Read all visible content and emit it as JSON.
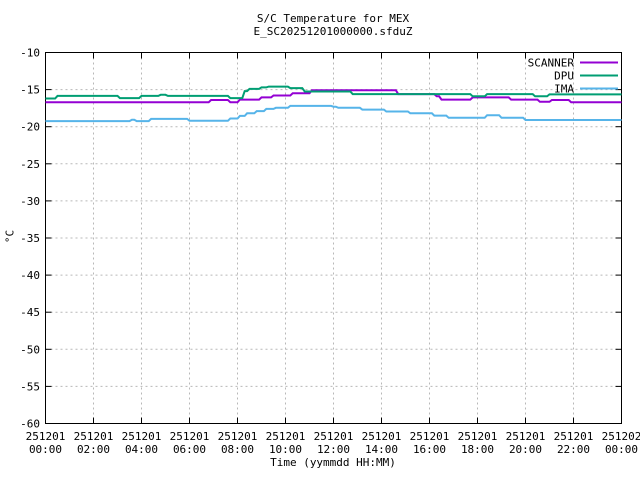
{
  "colors": {
    "background": "#ffffff",
    "axis": "#000000",
    "grid": "#b8b8b8",
    "scanner": "#9400d3",
    "dpu": "#009e73",
    "ima": "#56b4e9"
  },
  "chart_data": {
    "type": "line",
    "title": "S/C Temperature for MEX",
    "subtitle": "E_SC20251201000000.sfduZ",
    "xlabel": "Time (yymmdd HH:MM)",
    "ylabel": "°C",
    "ylim": [
      -60,
      -10
    ],
    "yticks": [
      -10,
      -15,
      -20,
      -25,
      -30,
      -35,
      -40,
      -45,
      -50,
      -55,
      -60
    ],
    "x_hours_range": [
      0,
      24
    ],
    "xticks": [
      {
        "hour": 0,
        "date": "251201",
        "time": "00:00"
      },
      {
        "hour": 2,
        "date": "251201",
        "time": "02:00"
      },
      {
        "hour": 4,
        "date": "251201",
        "time": "04:00"
      },
      {
        "hour": 6,
        "date": "251201",
        "time": "06:00"
      },
      {
        "hour": 8,
        "date": "251201",
        "time": "08:00"
      },
      {
        "hour": 10,
        "date": "251201",
        "time": "10:00"
      },
      {
        "hour": 12,
        "date": "251201",
        "time": "12:00"
      },
      {
        "hour": 14,
        "date": "251201",
        "time": "14:00"
      },
      {
        "hour": 16,
        "date": "251201",
        "time": "16:00"
      },
      {
        "hour": 18,
        "date": "251201",
        "time": "18:00"
      },
      {
        "hour": 20,
        "date": "251201",
        "time": "20:00"
      },
      {
        "hour": 22,
        "date": "251201",
        "time": "22:00"
      },
      {
        "hour": 24,
        "date": "251202",
        "time": "00:00"
      }
    ],
    "grid": true,
    "legend_position": "top-right-inside",
    "series": [
      {
        "name": "SCANNER",
        "color": "#9400d3",
        "points": [
          [
            0,
            -16.7
          ],
          [
            6.8,
            -16.7
          ],
          [
            6.9,
            -16.4
          ],
          [
            7.6,
            -16.4
          ],
          [
            7.7,
            -16.7
          ],
          [
            8.0,
            -16.7
          ],
          [
            8.1,
            -16.35
          ],
          [
            8.9,
            -16.35
          ],
          [
            9.0,
            -16.05
          ],
          [
            9.4,
            -16.05
          ],
          [
            9.5,
            -15.8
          ],
          [
            10.2,
            -15.8
          ],
          [
            10.3,
            -15.5
          ],
          [
            11.0,
            -15.5
          ],
          [
            11.1,
            -15.1
          ],
          [
            14.6,
            -15.1
          ],
          [
            14.7,
            -15.6
          ],
          [
            16.2,
            -15.6
          ],
          [
            16.3,
            -15.9
          ],
          [
            16.4,
            -15.9
          ],
          [
            16.5,
            -16.35
          ],
          [
            17.7,
            -16.35
          ],
          [
            17.8,
            -16.05
          ],
          [
            19.3,
            -16.05
          ],
          [
            19.4,
            -16.35
          ],
          [
            20.5,
            -16.35
          ],
          [
            20.6,
            -16.65
          ],
          [
            21.0,
            -16.65
          ],
          [
            21.1,
            -16.4
          ],
          [
            21.8,
            -16.4
          ],
          [
            21.9,
            -16.7
          ],
          [
            24,
            -16.7
          ]
        ]
      },
      {
        "name": "DPU",
        "color": "#009e73",
        "points": [
          [
            0,
            -16.2
          ],
          [
            0.4,
            -16.2
          ],
          [
            0.5,
            -15.85
          ],
          [
            3.0,
            -15.85
          ],
          [
            3.1,
            -16.15
          ],
          [
            3.9,
            -16.15
          ],
          [
            4.0,
            -15.85
          ],
          [
            4.7,
            -15.85
          ],
          [
            4.8,
            -15.7
          ],
          [
            5.0,
            -15.7
          ],
          [
            5.1,
            -15.85
          ],
          [
            7.6,
            -15.85
          ],
          [
            7.7,
            -16.15
          ],
          [
            8.2,
            -16.15
          ],
          [
            8.3,
            -15.2
          ],
          [
            8.4,
            -15.2
          ],
          [
            8.5,
            -14.9
          ],
          [
            8.9,
            -14.9
          ],
          [
            9.0,
            -14.7
          ],
          [
            9.2,
            -14.7
          ],
          [
            9.3,
            -14.6
          ],
          [
            10.1,
            -14.6
          ],
          [
            10.2,
            -14.8
          ],
          [
            10.7,
            -14.8
          ],
          [
            10.8,
            -15.25
          ],
          [
            12.7,
            -15.25
          ],
          [
            12.8,
            -15.6
          ],
          [
            17.7,
            -15.6
          ],
          [
            17.8,
            -15.9
          ],
          [
            18.3,
            -15.9
          ],
          [
            18.4,
            -15.6
          ],
          [
            20.3,
            -15.6
          ],
          [
            20.4,
            -15.9
          ],
          [
            20.9,
            -15.9
          ],
          [
            21.0,
            -15.65
          ],
          [
            24,
            -15.65
          ]
        ]
      },
      {
        "name": "IMA",
        "color": "#56b4e9",
        "points": [
          [
            0,
            -19.25
          ],
          [
            3.5,
            -19.25
          ],
          [
            3.6,
            -19.05
          ],
          [
            3.7,
            -19.05
          ],
          [
            3.8,
            -19.25
          ],
          [
            4.3,
            -19.25
          ],
          [
            4.4,
            -18.95
          ],
          [
            5.9,
            -18.95
          ],
          [
            6.0,
            -19.2
          ],
          [
            7.6,
            -19.2
          ],
          [
            7.7,
            -18.9
          ],
          [
            8.0,
            -18.9
          ],
          [
            8.1,
            -18.55
          ],
          [
            8.3,
            -18.55
          ],
          [
            8.4,
            -18.2
          ],
          [
            8.7,
            -18.2
          ],
          [
            8.8,
            -17.9
          ],
          [
            9.1,
            -17.9
          ],
          [
            9.2,
            -17.6
          ],
          [
            9.5,
            -17.6
          ],
          [
            9.6,
            -17.45
          ],
          [
            10.1,
            -17.45
          ],
          [
            10.2,
            -17.2
          ],
          [
            11.9,
            -17.2
          ],
          [
            12.0,
            -17.3
          ],
          [
            12.1,
            -17.3
          ],
          [
            12.2,
            -17.45
          ],
          [
            13.1,
            -17.45
          ],
          [
            13.2,
            -17.7
          ],
          [
            14.1,
            -17.7
          ],
          [
            14.2,
            -17.95
          ],
          [
            15.1,
            -17.95
          ],
          [
            15.2,
            -18.2
          ],
          [
            16.1,
            -18.2
          ],
          [
            16.2,
            -18.5
          ],
          [
            16.7,
            -18.5
          ],
          [
            16.8,
            -18.8
          ],
          [
            18.3,
            -18.8
          ],
          [
            18.4,
            -18.45
          ],
          [
            18.9,
            -18.45
          ],
          [
            19.0,
            -18.8
          ],
          [
            19.9,
            -18.8
          ],
          [
            20.0,
            -19.1
          ],
          [
            24,
            -19.1
          ]
        ]
      }
    ]
  }
}
